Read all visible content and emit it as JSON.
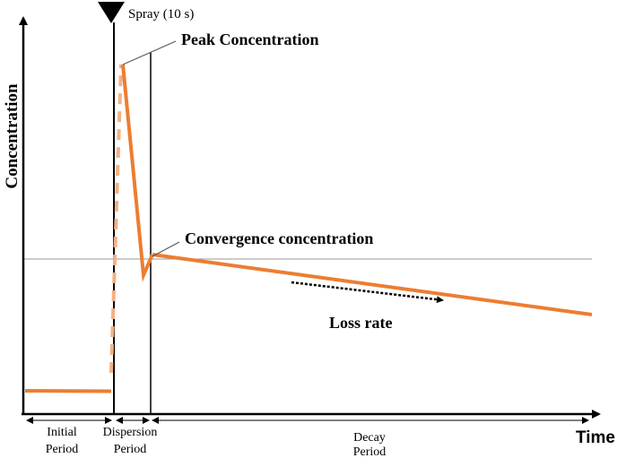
{
  "axes": {
    "y_label": "Concentration",
    "x_label": "Time"
  },
  "annotations": {
    "spray": "Spray (10 s)",
    "peak": "Peak Concentration",
    "convergence": "Convergence concentration",
    "loss_rate": "Loss rate"
  },
  "periods": [
    {
      "line1": "Initial",
      "line2": "Period"
    },
    {
      "line1": "Dispersion",
      "line2": "Period"
    },
    {
      "line1": "Decay",
      "line2": "Period"
    }
  ],
  "colors": {
    "curve": "#ED7D31",
    "axis": "#000000",
    "reference_line": "#9a9a9a"
  }
}
